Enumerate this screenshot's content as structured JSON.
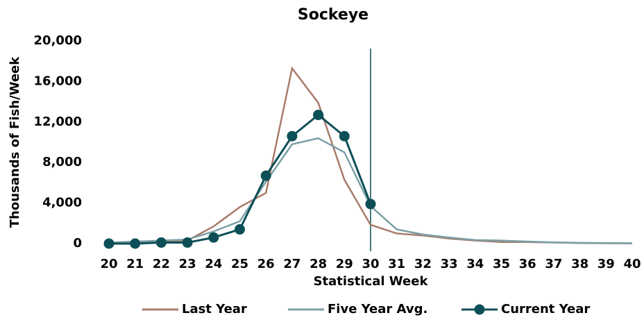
{
  "chart_data": {
    "type": "line",
    "title": "Sockeye",
    "xlabel": "Statistical Week",
    "ylabel": "Thousands of Fish/Week",
    "x": [
      20,
      21,
      22,
      23,
      24,
      25,
      26,
      27,
      28,
      29,
      30,
      31,
      32,
      33,
      34,
      35,
      36,
      37,
      38,
      39,
      40
    ],
    "xlim": [
      20,
      40
    ],
    "xticks": [
      20,
      21,
      22,
      23,
      24,
      25,
      26,
      27,
      28,
      29,
      30,
      31,
      32,
      33,
      34,
      35,
      36,
      37,
      38,
      39,
      40
    ],
    "ylim": [
      0,
      20000
    ],
    "yticks": [
      0,
      {
        "value": 4000,
        "label": "4,000"
      },
      {
        "value": 8000,
        "label": "8,000"
      },
      {
        "value": 12000,
        "label": "12,000"
      },
      {
        "value": 16000,
        "label": "16,000"
      },
      {
        "value": 20000,
        "label": "20,000"
      }
    ],
    "vline": 30,
    "legend": "bottom",
    "series": [
      {
        "name": "Last Year",
        "color": "#a87b6b",
        "marker": false,
        "values": [
          50,
          100,
          200,
          300,
          1700,
          3600,
          5000,
          17300,
          13900,
          6300,
          1850,
          1000,
          800,
          500,
          300,
          150,
          150,
          100,
          50,
          30,
          20
        ]
      },
      {
        "name": "Five Year Avg.",
        "color": "#7aa0a5",
        "marker": false,
        "values": [
          100,
          200,
          300,
          400,
          1200,
          2200,
          6100,
          9800,
          10400,
          9000,
          3700,
          1400,
          900,
          600,
          350,
          300,
          200,
          120,
          80,
          50,
          30
        ]
      },
      {
        "name": "Current Year",
        "color": "#0d4f57",
        "marker": true,
        "values": [
          0,
          0,
          100,
          100,
          600,
          1400,
          6700,
          10600,
          12700,
          10600,
          3900,
          null,
          null,
          null,
          null,
          null,
          null,
          null,
          null,
          null,
          null
        ]
      }
    ]
  }
}
